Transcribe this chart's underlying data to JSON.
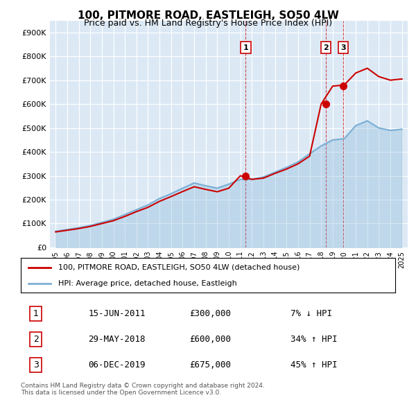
{
  "title": "100, PITMORE ROAD, EASTLEIGH, SO50 4LW",
  "subtitle": "Price paid vs. HM Land Registry's House Price Index (HPI)",
  "background_color": "#dce9f5",
  "plot_bg_color": "#dce9f5",
  "hpi_color": "#7bafd4",
  "price_color": "#cc0000",
  "ylim": [
    0,
    950000
  ],
  "yticks": [
    0,
    100000,
    200000,
    300000,
    400000,
    500000,
    600000,
    700000,
    800000,
    900000
  ],
  "ytick_labels": [
    "£0",
    "£100K",
    "£200K",
    "£300K",
    "£400K",
    "£500K",
    "£600K",
    "£700K",
    "£800K",
    "£900K"
  ],
  "sale_dates": [
    "2011-06-15",
    "2018-05-29",
    "2019-12-06"
  ],
  "sale_prices": [
    300000,
    600000,
    675000
  ],
  "sale_labels": [
    "1",
    "2",
    "3"
  ],
  "legend_entries": [
    "100, PITMORE ROAD, EASTLEIGH, SO50 4LW (detached house)",
    "HPI: Average price, detached house, Eastleigh"
  ],
  "table_data": [
    [
      "1",
      "15-JUN-2011",
      "£300,000",
      "7% ↓ HPI"
    ],
    [
      "2",
      "29-MAY-2018",
      "£600,000",
      "34% ↑ HPI"
    ],
    [
      "3",
      "06-DEC-2019",
      "£675,000",
      "45% ↑ HPI"
    ]
  ],
  "footer": "Contains HM Land Registry data © Crown copyright and database right 2024.\nThis data is licensed under the Open Government Licence v3.0.",
  "hpi_data_years": [
    1995,
    1996,
    1997,
    1998,
    1999,
    2000,
    2001,
    2002,
    2003,
    2004,
    2005,
    2006,
    2007,
    2008,
    2009,
    2010,
    2011,
    2012,
    2013,
    2014,
    2015,
    2016,
    2017,
    2018,
    2019,
    2020,
    2021,
    2022,
    2023,
    2024,
    2025
  ],
  "hpi_values": [
    68000,
    75000,
    83000,
    92000,
    105000,
    118000,
    138000,
    158000,
    178000,
    205000,
    225000,
    248000,
    270000,
    258000,
    248000,
    265000,
    285000,
    285000,
    295000,
    315000,
    335000,
    358000,
    392000,
    425000,
    450000,
    455000,
    510000,
    530000,
    500000,
    490000,
    495000
  ],
  "price_line_years": [
    1995,
    1996,
    1997,
    1998,
    1999,
    2000,
    2001,
    2002,
    2003,
    2004,
    2005,
    2006,
    2007,
    2008,
    2009,
    2010,
    2011,
    2012,
    2013,
    2014,
    2015,
    2016,
    2017,
    2018,
    2019,
    2020,
    2021,
    2022,
    2023,
    2024,
    2025
  ],
  "price_line_values": [
    65000,
    72000,
    79000,
    88000,
    100000,
    112000,
    130000,
    150000,
    168000,
    193000,
    213000,
    234000,
    254000,
    243000,
    233000,
    248000,
    300000,
    285000,
    290000,
    310000,
    328000,
    350000,
    382000,
    600000,
    675000,
    680000,
    730000,
    750000,
    715000,
    700000,
    705000
  ]
}
